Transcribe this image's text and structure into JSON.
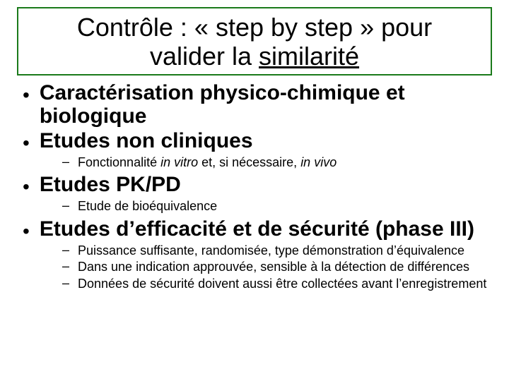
{
  "type": "slide",
  "background_color": "#ffffff",
  "title_box": {
    "border_color": "#1a7a1a",
    "border_width": 2,
    "line1": "Contrôle : « step by step » pour",
    "line2_pre": "valider la ",
    "line2_underlined": "similarité",
    "fontsize": 36,
    "font_weight": "normal",
    "color": "#000000"
  },
  "bullets": [
    {
      "level": 1,
      "text": "Caractérisation physico-chimique et biologique",
      "subs": []
    },
    {
      "level": 1,
      "text": "Etudes non cliniques",
      "subs": [
        {
          "parts": [
            {
              "t": "Fonctionnalité ",
              "italic": false
            },
            {
              "t": "in vitro",
              "italic": true
            },
            {
              "t": " et, si nécessaire, ",
              "italic": false
            },
            {
              "t": "in vivo",
              "italic": true
            }
          ]
        }
      ]
    },
    {
      "level": 1,
      "text": "Etudes PK/PD",
      "subs": [
        {
          "parts": [
            {
              "t": "Etude de bioéquivalence",
              "italic": false
            }
          ]
        }
      ]
    },
    {
      "level": 1,
      "text": "Etudes d’efficacité et de sécurité (phase III)",
      "subs": [
        {
          "parts": [
            {
              "t": "Puissance suffisante, randomisée, type démonstration d’équivalence",
              "italic": false
            }
          ]
        },
        {
          "parts": [
            {
              "t": "Dans une indication approuvée, sensible à la détection de différences",
              "italic": false
            }
          ]
        },
        {
          "parts": [
            {
              "t": "Données de sécurité doivent aussi être collectées avant l’enregistrement",
              "italic": false
            }
          ]
        }
      ]
    }
  ],
  "style": {
    "l1_fontsize": 30,
    "l1_weight": "bold",
    "l2_fontsize": 18,
    "bullet_dot": "•",
    "dash": "–",
    "text_color": "#000000"
  }
}
